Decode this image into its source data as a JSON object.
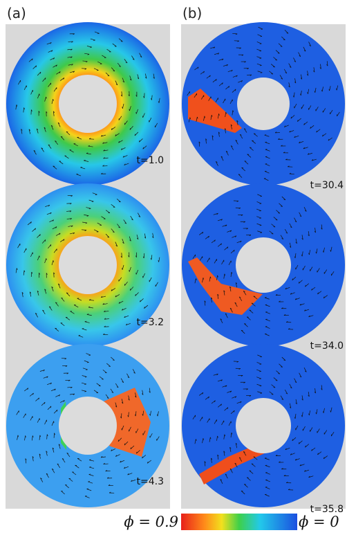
{
  "panels": [
    {
      "label": "(a)",
      "frames": [
        {
          "time": "t=1.0"
        },
        {
          "time": "t=3.2"
        },
        {
          "time": "t=4.3"
        }
      ]
    },
    {
      "label": "(b)",
      "frames": [
        {
          "time": "t=30.4"
        },
        {
          "time": "t=34.0"
        },
        {
          "time": "t=35.8"
        }
      ]
    }
  ],
  "colorbar": {
    "left_label": "ϕ = 0.9",
    "right_label": "ϕ = 0"
  }
}
